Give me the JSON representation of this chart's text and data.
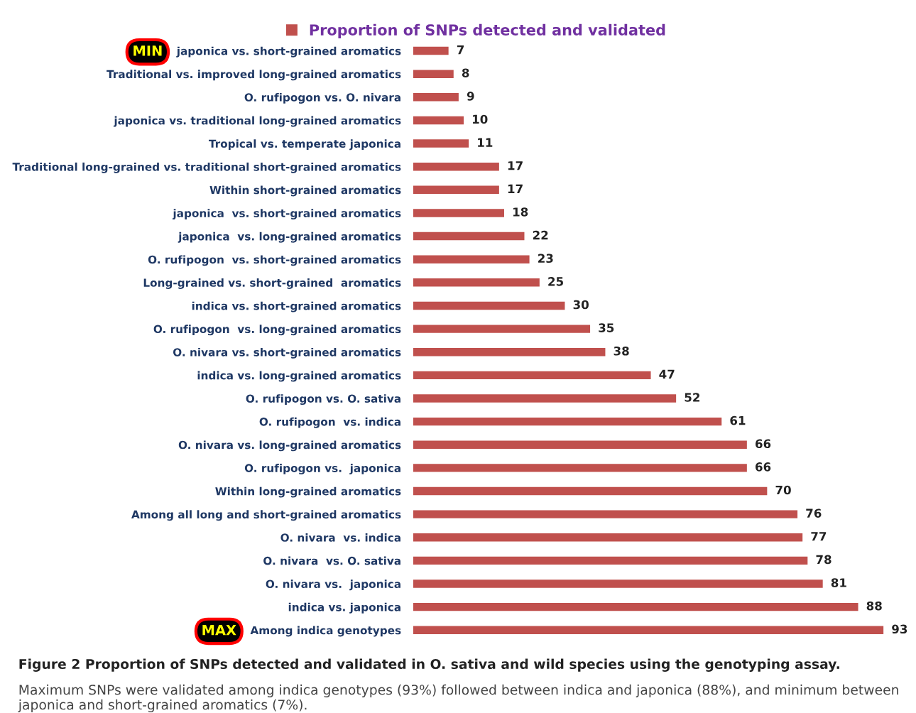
{
  "chart_data": {
    "type": "bar",
    "orientation": "horizontal",
    "categories": [
      "japonica vs. short-grained aromatics",
      "Traditional vs. improved long-grained aromatics",
      "O. rufipogon vs. O. nivara",
      "japonica vs. traditional long-grained aromatics",
      "Tropical vs. temperate japonica",
      "Traditional long-grained vs. traditional short-grained aromatics",
      "Within short-grained aromatics",
      "japonica  vs. short-grained aromatics",
      "japonica  vs. long-grained aromatics",
      "O. rufipogon  vs. short-grained aromatics",
      "Long-grained vs. short-grained  aromatics",
      "indica vs. short-grained aromatics",
      "O. rufipogon  vs. long-grained aromatics",
      "O. nivara vs. short-grained aromatics",
      "indica vs. long-grained aromatics",
      "O. rufipogon vs. O. sativa",
      "O. rufipogon  vs. indica",
      "O. nivara vs. long-grained aromatics",
      "O. rufipogon vs.  japonica",
      "Within long-grained aromatics",
      "Among all long and short-grained aromatics",
      "O. nivara  vs. indica",
      "O. nivara  vs. O. sativa",
      "O. nivara vs.  japonica",
      "indica vs. japonica",
      "Among indica genotypes"
    ],
    "series": [
      {
        "name": "Proportion of SNPs detected and validated",
        "color": "#c0504d",
        "values": [
          7,
          8,
          9,
          10,
          11,
          17,
          17,
          18,
          22,
          23,
          25,
          30,
          35,
          38,
          47,
          52,
          61,
          66,
          66,
          70,
          76,
          77,
          78,
          81,
          88,
          93
        ]
      }
    ],
    "data_labels": true,
    "legend": "top",
    "tick_labels": "y",
    "grid": false,
    "annotations": [
      "MIN",
      "MAX",
      "Figure 2 Proportion of SNPs detected and validated in O. sativa and wild species using the genotyping assay.",
      "Maximum SNPs were validated among indica genotypes (93%) followed between indica and japonica (88%), and minimum between japonica and short-grained aromatics (7%)."
    ]
  }
}
